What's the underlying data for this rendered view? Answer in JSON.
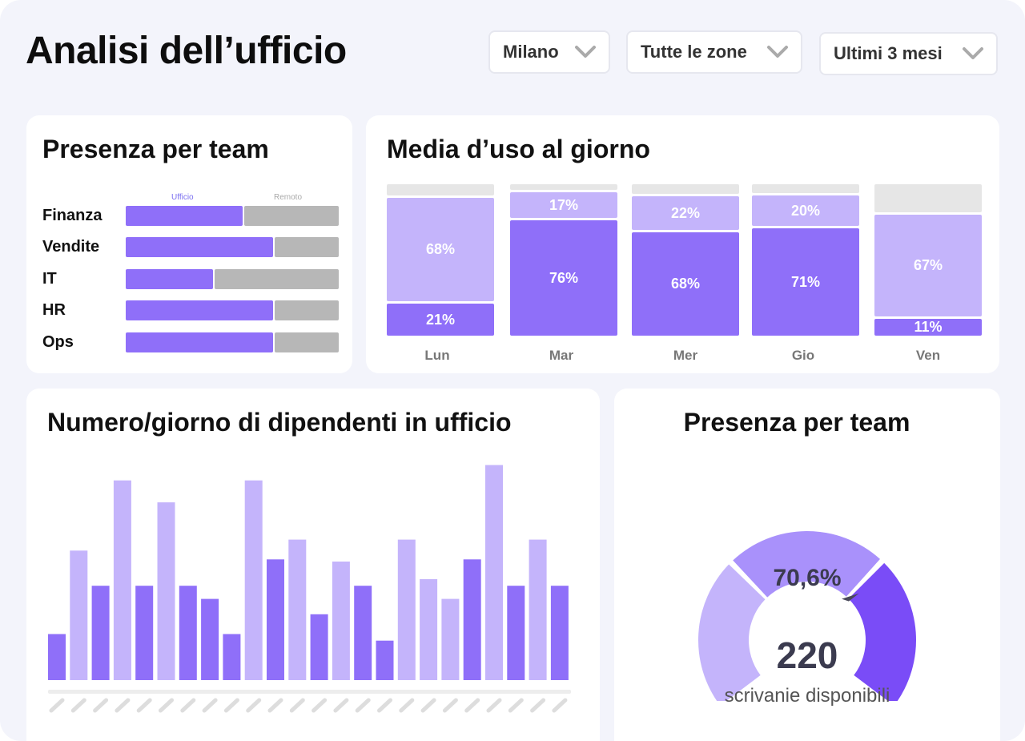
{
  "header": {
    "title": "Analisi dell’ufficio",
    "filters": [
      {
        "label": "Milano"
      },
      {
        "label": "Tutte le zone"
      },
      {
        "label": "Ultimi 3 mesi"
      }
    ]
  },
  "colors": {
    "office": "#8f6ff9",
    "remote": "#b7b7b7",
    "light": "#c4b4fb",
    "dark": "#8f6ff9",
    "deep": "#7a4cf7",
    "track": "#e6e6e6"
  },
  "team_presence": {
    "title": "Presenza per team",
    "legend_office": "Ufficio",
    "legend_remote": "Remoto",
    "teams": [
      {
        "name": "Finanza",
        "office_fraction": 0.55
      },
      {
        "name": "Vendite",
        "office_fraction": 0.69
      },
      {
        "name": "IT",
        "office_fraction": 0.41
      },
      {
        "name": "HR",
        "office_fraction": 0.69
      },
      {
        "name": "Ops",
        "office_fraction": 0.69
      }
    ]
  },
  "daily_usage": {
    "title": "Media d’uso al giorno",
    "days": [
      {
        "day": "Lun",
        "top": 68,
        "bottom": 21,
        "top_label": "68%",
        "bottom_label": "21%"
      },
      {
        "day": "Mar",
        "top": 17,
        "bottom": 76,
        "top_label": "17%",
        "bottom_label": "76%"
      },
      {
        "day": "Mer",
        "top": 22,
        "bottom": 68,
        "top_label": "22%",
        "bottom_label": "68%"
      },
      {
        "day": "Gio",
        "top": 20,
        "bottom": 71,
        "top_label": "20%",
        "bottom_label": "71%"
      },
      {
        "day": "Ven",
        "top": 67,
        "bottom": 11,
        "top_label": "67%",
        "bottom_label": "11%"
      }
    ]
  },
  "employees_per_day": {
    "title": "Numero/giorno di dipendenti in ufficio",
    "chart_data": {
      "type": "bar",
      "values": [
        21,
        59,
        43,
        91,
        43,
        81,
        43,
        37,
        21,
        91,
        55,
        64,
        30,
        54,
        43,
        18,
        64,
        46,
        37,
        55,
        98,
        43,
        64,
        43
      ],
      "tones": [
        "dark",
        "light",
        "dark",
        "light",
        "dark",
        "light",
        "dark",
        "dark",
        "dark",
        "light",
        "dark",
        "light",
        "dark",
        "light",
        "dark",
        "dark",
        "light",
        "light",
        "light",
        "dark",
        "light",
        "dark",
        "light",
        "dark"
      ],
      "ylim": [
        0,
        100
      ]
    }
  },
  "desk_gauge": {
    "title": "Presenza per team",
    "percent_label": "70,6%",
    "percent_value": 70.6,
    "count": "220",
    "subtitle": "scrivanie disponibili"
  }
}
